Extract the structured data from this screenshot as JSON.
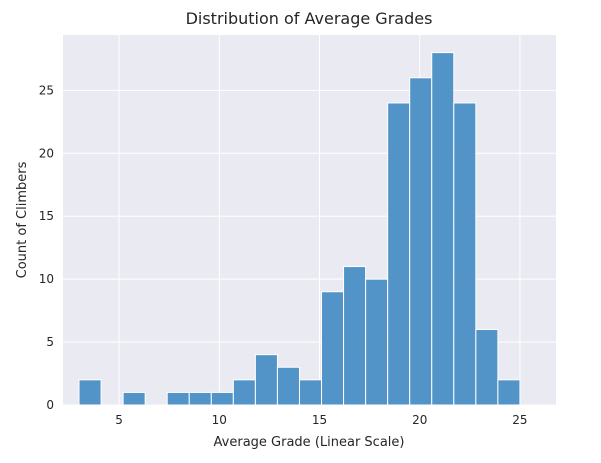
{
  "chart_data": {
    "type": "bar",
    "title": "Distribution of Average Grades",
    "xlabel": "Average Grade (Linear Scale)",
    "ylabel": "Count of Climbers",
    "xlim": [
      2.2,
      26.8
    ],
    "ylim": [
      0,
      29.4
    ],
    "xticks": [
      5,
      10,
      15,
      20,
      25
    ],
    "yticks": [
      0,
      5,
      10,
      15,
      20,
      25
    ],
    "grid": true,
    "bar_color": "#4a8fc4",
    "background_color": "#eaeaf2",
    "bins": [
      {
        "x0": 3.0,
        "x1": 4.1,
        "count": 2
      },
      {
        "x0": 4.1,
        "x1": 5.2,
        "count": 0
      },
      {
        "x0": 5.2,
        "x1": 6.3,
        "count": 1
      },
      {
        "x0": 6.3,
        "x1": 7.4,
        "count": 0
      },
      {
        "x0": 7.4,
        "x1": 8.5,
        "count": 1
      },
      {
        "x0": 8.5,
        "x1": 9.6,
        "count": 1
      },
      {
        "x0": 9.6,
        "x1": 10.7,
        "count": 1
      },
      {
        "x0": 10.7,
        "x1": 11.8,
        "count": 2
      },
      {
        "x0": 11.8,
        "x1": 12.9,
        "count": 4
      },
      {
        "x0": 12.9,
        "x1": 14.0,
        "count": 3
      },
      {
        "x0": 14.0,
        "x1": 15.1,
        "count": 2
      },
      {
        "x0": 15.1,
        "x1": 16.2,
        "count": 9
      },
      {
        "x0": 16.2,
        "x1": 17.3,
        "count": 11
      },
      {
        "x0": 17.3,
        "x1": 18.4,
        "count": 10
      },
      {
        "x0": 18.4,
        "x1": 19.5,
        "count": 24
      },
      {
        "x0": 19.5,
        "x1": 20.6,
        "count": 26
      },
      {
        "x0": 20.6,
        "x1": 21.7,
        "count": 28
      },
      {
        "x0": 21.7,
        "x1": 22.8,
        "count": 24
      },
      {
        "x0": 22.8,
        "x1": 23.9,
        "count": 6
      },
      {
        "x0": 23.9,
        "x1": 25.0,
        "count": 2
      }
    ]
  }
}
